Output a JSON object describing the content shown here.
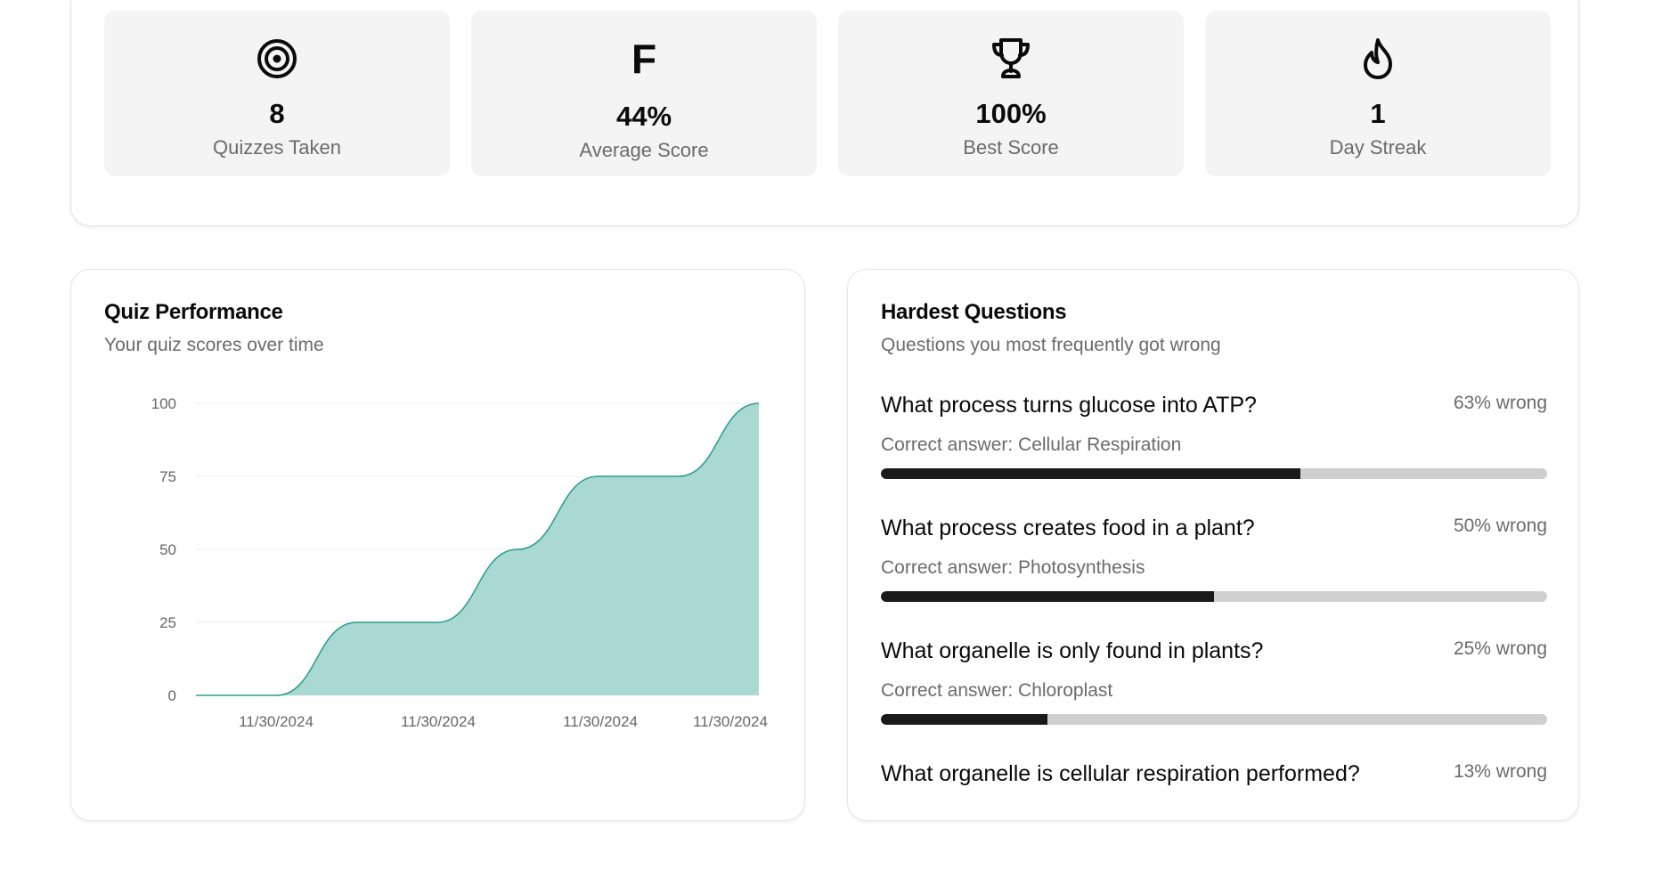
{
  "stats": [
    {
      "icon": "target-icon",
      "value": "8",
      "label": "Quizzes Taken"
    },
    {
      "icon": "grade-letter",
      "letter": "F",
      "value": "44%",
      "label": "Average Score"
    },
    {
      "icon": "trophy-icon",
      "value": "100%",
      "label": "Best Score"
    },
    {
      "icon": "flame-icon",
      "value": "1",
      "label": "Day Streak"
    }
  ],
  "performance": {
    "title": "Quiz Performance",
    "subtitle": "Your quiz scores over time"
  },
  "chart_data": {
    "type": "area",
    "title": "",
    "xlabel": "",
    "ylabel": "",
    "x": [
      "11/30/2024",
      "11/30/2024",
      "11/30/2024",
      "11/30/2024",
      "11/30/2024",
      "11/30/2024",
      "11/30/2024",
      "11/30/2024"
    ],
    "x_tick_labels": [
      "11/30/2024",
      "11/30/2024",
      "11/30/2024",
      "11/30/2024"
    ],
    "values": [
      0,
      0,
      25,
      25,
      50,
      75,
      75,
      100
    ],
    "ylim": [
      0,
      100
    ],
    "y_ticks": [
      0,
      25,
      50,
      75,
      100
    ],
    "grid": true,
    "color": "#2a9d8f",
    "fill": "#a9d9d2"
  },
  "hardest": {
    "title": "Hardest Questions",
    "subtitle": "Questions you most frequently got wrong",
    "items": [
      {
        "question": "What process turns glucose into ATP?",
        "pct_label": "63% wrong",
        "pct": 63,
        "answer": "Correct answer: Cellular Respiration"
      },
      {
        "question": "What process creates food in a plant?",
        "pct_label": "50% wrong",
        "pct": 50,
        "answer": "Correct answer: Photosynthesis"
      },
      {
        "question": "What organelle is only found in plants?",
        "pct_label": "25% wrong",
        "pct": 25,
        "answer": "Correct answer: Chloroplast"
      },
      {
        "question": "What organelle is cellular respiration performed?",
        "pct_label": "13% wrong",
        "pct": 13,
        "answer": ""
      }
    ]
  }
}
